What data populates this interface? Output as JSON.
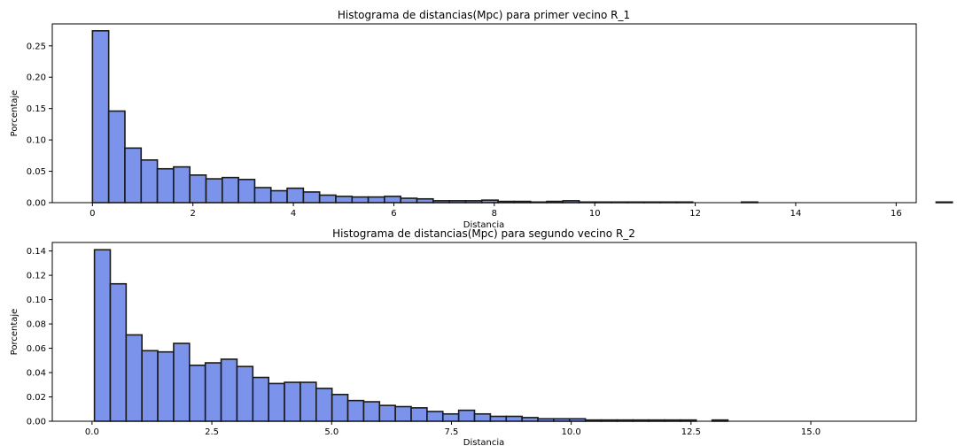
{
  "chart_data": [
    {
      "type": "bar",
      "title": "Histograma de distancias(Mpc) para primer vecino R_1",
      "xlabel": "Distancia",
      "ylabel": "Porcentaje",
      "xlim": [
        -0.8,
        16.4
      ],
      "ylim": [
        0,
        0.285
      ],
      "xticks": [
        0,
        2,
        4,
        6,
        8,
        10,
        12,
        14,
        16
      ],
      "xtick_labels": [
        "0",
        "2",
        "4",
        "6",
        "8",
        "10",
        "12",
        "14",
        "16"
      ],
      "yticks": [
        0,
        0.05,
        0.1,
        0.15,
        0.2,
        0.25
      ],
      "ytick_labels": [
        "0.00",
        "0.05",
        "0.10",
        "0.15",
        "0.20",
        "0.25"
      ],
      "bin_start": 0,
      "bin_width": 0.323,
      "values": [
        0.274,
        0.146,
        0.087,
        0.068,
        0.054,
        0.057,
        0.044,
        0.038,
        0.04,
        0.037,
        0.024,
        0.019,
        0.023,
        0.017,
        0.012,
        0.01,
        0.009,
        0.009,
        0.01,
        0.007,
        0.006,
        0.003,
        0.003,
        0.003,
        0.004,
        0.002,
        0.002,
        0.001,
        0.002,
        0.003,
        0.001,
        0.001,
        0.001,
        0.001,
        0.001,
        0.001,
        0.001,
        0.0,
        0.0,
        0.0,
        0.001,
        0.0,
        0.0,
        0.0,
        0.0,
        0.0,
        0.0,
        0.0,
        0.0,
        0.0,
        0.0,
        0.0,
        0.001,
        0.0,
        0.0,
        0.0,
        0.0,
        0.0,
        0.0,
        0.0,
        0.0,
        0.0,
        0.0,
        0.0,
        0.0,
        0.0,
        0.0,
        0.0,
        0.0,
        0.0,
        0.0,
        0.0,
        0.0,
        0.0,
        0.0,
        0.0,
        0.0,
        0.0,
        0.0,
        0.0,
        0.0,
        0.0,
        0.0,
        0.0,
        0.0,
        0.0,
        0.0,
        0.0,
        0.0,
        0.0,
        0.0,
        0.0,
        0.0,
        0.0,
        0.0,
        0.0,
        0.0,
        0.0,
        0.0,
        0.0,
        0.0,
        0.0,
        0.0,
        0.0,
        0.0,
        0.0,
        0.0,
        0.0,
        0.0,
        0.0,
        0.0,
        0.0
      ],
      "bar_color": "#7b93ea",
      "edge_color": "#1a1a1a",
      "grid": false
    },
    {
      "type": "bar",
      "title": "Histograma de distancias(Mpc) para segundo vecino R_2",
      "xlabel": "Distancia",
      "ylabel": "Porcentaje",
      "xlim": [
        -0.83,
        17.2
      ],
      "ylim": [
        0,
        0.147
      ],
      "xticks": [
        0,
        2.5,
        5,
        7.5,
        10,
        12.5,
        15
      ],
      "xtick_labels": [
        "0.0",
        "2.5",
        "5.0",
        "7.5",
        "10.0",
        "12.5",
        "15.0"
      ],
      "yticks": [
        0,
        0.02,
        0.04,
        0.06,
        0.08,
        0.1,
        0.12,
        0.14
      ],
      "ytick_labels": [
        "0.00",
        "0.02",
        "0.04",
        "0.06",
        "0.08",
        "0.10",
        "0.12",
        "0.14"
      ],
      "bin_start": 0.05,
      "bin_width": 0.3305,
      "values": [
        0.141,
        0.113,
        0.071,
        0.058,
        0.057,
        0.064,
        0.046,
        0.048,
        0.051,
        0.045,
        0.036,
        0.031,
        0.032,
        0.032,
        0.027,
        0.022,
        0.017,
        0.016,
        0.013,
        0.012,
        0.011,
        0.008,
        0.006,
        0.009,
        0.006,
        0.004,
        0.004,
        0.003,
        0.002,
        0.002,
        0.002,
        0.001,
        0.001,
        0.001,
        0.001,
        0.001,
        0.001,
        0.001,
        0.0,
        0.001,
        0.0,
        0.0,
        0.0,
        0.0,
        0.0,
        0.0,
        0.0,
        0.0,
        0.0,
        0.0
      ],
      "bar_color": "#7b93ea",
      "edge_color": "#1a1a1a",
      "grid": false
    }
  ]
}
